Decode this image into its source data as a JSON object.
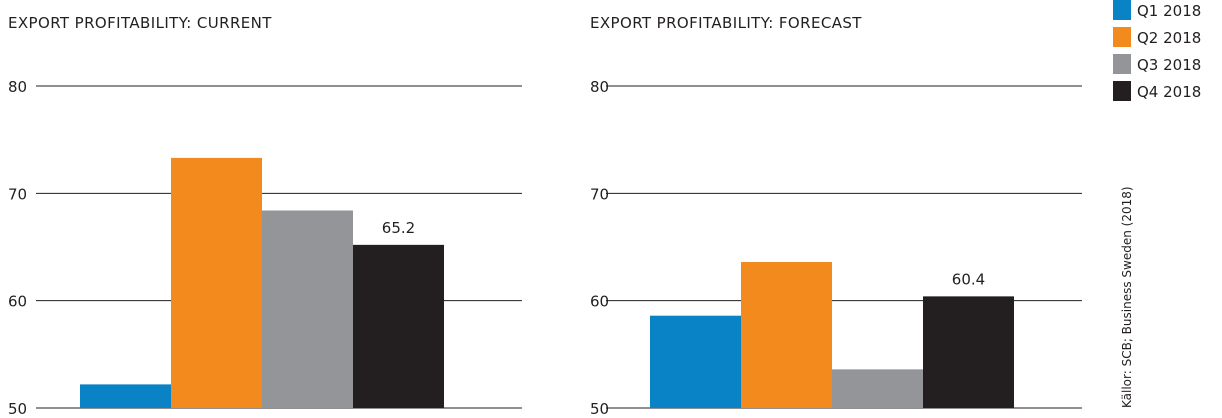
{
  "legend": {
    "items": [
      {
        "label": "Q1 2018",
        "color": "#0a82c6"
      },
      {
        "label": "Q2 2018",
        "color": "#f28a1e"
      },
      {
        "label": "Q3 2018",
        "color": "#939598"
      },
      {
        "label": "Q4 2018",
        "color": "#231f20"
      }
    ]
  },
  "source": "Källor: SCB; Business Sweden (2018)",
  "chart_data": [
    {
      "type": "bar",
      "title": "EXPORT PROFITABILITY: CURRENT",
      "categories": [
        "Q1 2018",
        "Q2 2018",
        "Q3 2018",
        "Q4 2018"
      ],
      "values": [
        52.2,
        73.3,
        68.4,
        65.2
      ],
      "data_labels": [
        null,
        null,
        null,
        "65.2"
      ],
      "ylim": [
        50,
        80
      ],
      "yticks": [
        "50",
        "60",
        "70",
        "80"
      ],
      "grid": true,
      "legend_position": "top-right"
    },
    {
      "type": "bar",
      "title": "EXPORT PROFITABILITY: FORECAST",
      "categories": [
        "Q1 2018",
        "Q2 2018",
        "Q3 2018",
        "Q4 2018"
      ],
      "values": [
        58.6,
        63.6,
        53.6,
        60.4
      ],
      "data_labels": [
        null,
        null,
        null,
        "60.4"
      ],
      "ylim": [
        50,
        80
      ],
      "yticks": [
        "50",
        "60",
        "70",
        "80"
      ],
      "grid": true,
      "legend_position": "top-right"
    }
  ]
}
